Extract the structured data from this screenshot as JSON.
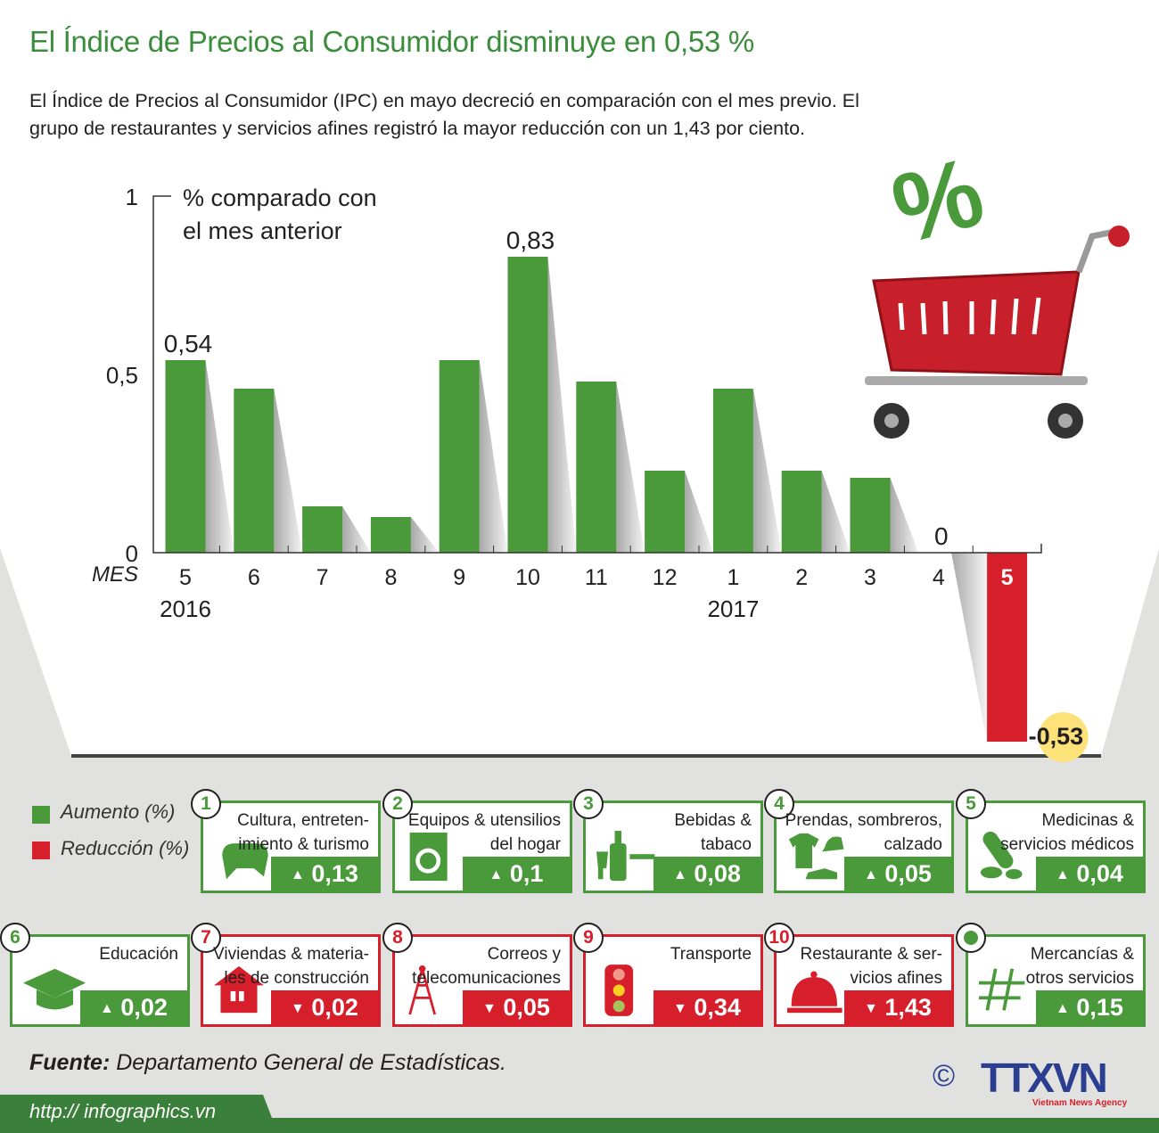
{
  "header": {
    "title": "El Índice de Precios al Consumidor disminuye en 0,53 %",
    "intro": "El Índice de Precios al Consumidor (IPC) en mayo decreció en comparación con el mes previo. El grupo de restaurantes y servicios afines registró la mayor reducción con un 1,43 por ciento."
  },
  "chart_data": {
    "type": "bar",
    "ylabel_line1": "% comparado con",
    "ylabel_line2": "el mes anterior",
    "xlabel": "MES",
    "yticks": [
      "1",
      "0,5",
      "0"
    ],
    "ylim": [
      -0.53,
      1
    ],
    "categories": [
      "5",
      "6",
      "7",
      "8",
      "9",
      "10",
      "11",
      "12",
      "1",
      "2",
      "3",
      "4",
      "5"
    ],
    "year_labels": [
      {
        "label": "2016",
        "at_category_index": 0
      },
      {
        "label": "2017",
        "at_category_index": 8
      }
    ],
    "values": [
      0.54,
      0.46,
      0.13,
      0.1,
      0.54,
      0.83,
      0.48,
      0.23,
      0.46,
      0.23,
      0.21,
      0,
      -0.53
    ],
    "data_labels": {
      "0": "0,54",
      "5": "0,83",
      "11": "0",
      "12": "-0,53"
    },
    "colors": {
      "increase": "#4a9a3c",
      "decrease": "#d71f2b",
      "highlight": "#fde27a"
    }
  },
  "legend": {
    "increase": "Aumento (%)",
    "decrease": "Reducción (%)"
  },
  "categories": [
    {
      "num": "1",
      "label1": "Cultura, entreten-",
      "label2": "imiento & turismo",
      "value": "0,13",
      "dir": "up",
      "icon": "gamepad-icon"
    },
    {
      "num": "2",
      "label1": "Equipos & utensilios",
      "label2": "del hogar",
      "value": "0,1",
      "dir": "up",
      "icon": "washing-machine-icon"
    },
    {
      "num": "3",
      "label1": "Bebidas &",
      "label2": "tabaco",
      "value": "0,08",
      "dir": "up",
      "icon": "bottle-cigarette-icon"
    },
    {
      "num": "4",
      "label1": "Prendas, sombreros,",
      "label2": "calzado",
      "value": "0,05",
      "dir": "up",
      "icon": "clothing-icon"
    },
    {
      "num": "5",
      "label1": "Medicinas &",
      "label2": "servicios médicos",
      "value": "0,04",
      "dir": "up",
      "icon": "pill-icon"
    },
    {
      "num": "6",
      "label1": "Educación",
      "label2": "",
      "value": "0,02",
      "dir": "up",
      "icon": "graduation-cap-icon"
    },
    {
      "num": "7",
      "label1": "Viviendas & materia-",
      "label2": "les de construcción",
      "value": "0,02",
      "dir": "down",
      "icon": "house-icon"
    },
    {
      "num": "8",
      "label1": "Correos y",
      "label2": "telecomunicaciones",
      "value": "0,05",
      "dir": "down",
      "icon": "antenna-tower-icon"
    },
    {
      "num": "9",
      "label1": "Transporte",
      "label2": "",
      "value": "0,34",
      "dir": "down",
      "icon": "traffic-light-icon"
    },
    {
      "num": "10",
      "label1": "Restaurante & ser-",
      "label2": "vicios afines",
      "value": "1,43",
      "dir": "down",
      "icon": "food-cloche-icon"
    },
    {
      "num": "",
      "label1": "Mercancías &",
      "label2": "otros servicios",
      "value": "0,15",
      "dir": "up",
      "icon": "hash-icon"
    }
  ],
  "footer": {
    "source_label": "Fuente:",
    "source": "Departamento General de Estadísticas.",
    "url": "http:// infographics.vn",
    "copyright": "©",
    "logo": "TTXVN",
    "logo_sub": "Vietnam News Agency"
  }
}
